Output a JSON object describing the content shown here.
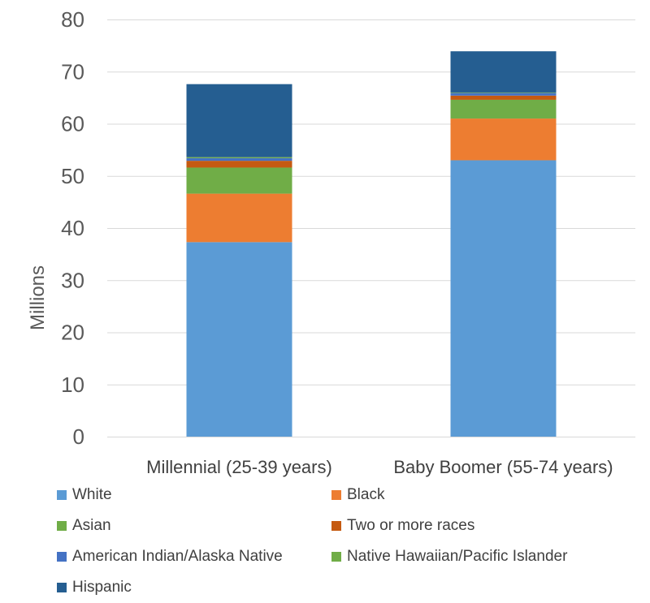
{
  "chart_data": {
    "type": "bar",
    "stacked": true,
    "categories": [
      "Millennial (25-39 years)",
      "Baby Boomer (55-74 years)"
    ],
    "ylabel": "Millions",
    "xlabel": "",
    "ylim": [
      0,
      80
    ],
    "yticks": [
      0,
      10,
      20,
      30,
      40,
      50,
      60,
      70,
      80
    ],
    "grid": true,
    "legend_position": "bottom",
    "series": [
      {
        "name": "White",
        "color": "#5B9BD5",
        "values": [
          37.3,
          53.0
        ]
      },
      {
        "name": "Black",
        "color": "#ED7D31",
        "values": [
          9.3,
          8.0
        ]
      },
      {
        "name": "Asian",
        "color": "#70AD47",
        "values": [
          5.0,
          3.6
        ]
      },
      {
        "name": "Two or more races",
        "color": "#C55A11",
        "values": [
          1.3,
          0.8
        ]
      },
      {
        "name": "American Indian/Alaska Native",
        "color": "#4472C4",
        "values": [
          0.5,
          0.5
        ]
      },
      {
        "name": "Native Hawaiian/Pacific Islander",
        "color": "#70AD47",
        "values": [
          0.2,
          0.1
        ]
      },
      {
        "name": "Hispanic",
        "color": "#255E91",
        "values": [
          14.0,
          7.9
        ]
      }
    ]
  }
}
